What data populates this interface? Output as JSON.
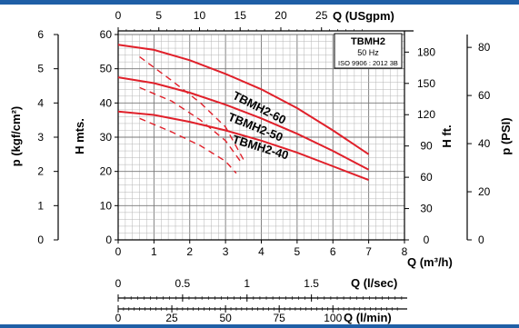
{
  "colors": {
    "top_bar": "#1f5fa6",
    "curve": "#e0202a",
    "grid_minor": "#b5b5b5",
    "grid_major": "#777777",
    "axis": "#000000"
  },
  "chart_data": {
    "type": "line",
    "xlabel": "Q (m³/h)",
    "ylabel": "H mts.",
    "xlim": [
      0,
      8
    ],
    "ylim": [
      0,
      60
    ],
    "x_ticks": [
      0,
      1,
      2,
      3,
      4,
      5,
      6,
      7,
      8
    ],
    "y_ticks": [
      0,
      10,
      20,
      30,
      40,
      50,
      60
    ],
    "grid": true,
    "legend": {
      "title": "TBMH2",
      "freq": "50 Hz",
      "iso": "ISO 9906 : 2012 3B",
      "placement": "top-right"
    },
    "series": [
      {
        "name": "TBMH2-60",
        "label": "TBMH2-60",
        "x": [
          0,
          1,
          2,
          3,
          4,
          5,
          6,
          7
        ],
        "y": [
          57,
          55.5,
          52.5,
          48.5,
          44,
          38.5,
          32,
          25
        ]
      },
      {
        "name": "TBMH2-50",
        "label": "TBMH2-50",
        "x": [
          0,
          1,
          2,
          3,
          4,
          5,
          6,
          7
        ],
        "y": [
          47.5,
          45.8,
          43,
          39.5,
          35.5,
          31,
          26,
          20.5
        ]
      },
      {
        "name": "TBMH2-40",
        "label": "TBMH2-40",
        "x": [
          0,
          1,
          2,
          3,
          4,
          5,
          6,
          7
        ],
        "y": [
          37.5,
          36.5,
          34.5,
          32,
          29,
          25.5,
          21.5,
          17.5
        ]
      }
    ],
    "dashed_lines": [
      {
        "x": [
          0.6,
          1.5,
          2.3,
          3.0,
          3.5
        ],
        "y": [
          53.5,
          46.5,
          40,
          33,
          23.5
        ]
      },
      {
        "x": [
          0.6,
          1.5,
          2.3,
          3.0,
          3.45
        ],
        "y": [
          44.5,
          40.5,
          35,
          29,
          22.5
        ]
      },
      {
        "x": [
          0.6,
          1.5,
          2.3,
          3.0,
          3.3
        ],
        "y": [
          35.5,
          31.5,
          27.5,
          23,
          19.5
        ]
      }
    ],
    "secondary_axes": {
      "top_usgpm": {
        "label": "Q (USgpm)",
        "max": 35.2,
        "ticks": [
          0,
          5,
          10,
          15,
          20,
          25
        ]
      },
      "left_kgf": {
        "label": "p (kgf/cm²)",
        "max": 6,
        "ticks": [
          0,
          1,
          2,
          3,
          4,
          5,
          6
        ]
      },
      "right_hft": {
        "label": "H ft.",
        "max": 196.85,
        "ticks": [
          0,
          30,
          60,
          90,
          120,
          150,
          180
        ]
      },
      "right_psi": {
        "label": "p (PSI)",
        "max": 85.34,
        "ticks": [
          0,
          20,
          40,
          60,
          80
        ]
      },
      "bottom_lsec": {
        "label": "Q (l/sec)",
        "max": 2.222,
        "ticks": [
          "0",
          "0.5",
          "1",
          "1.5"
        ]
      },
      "bottom_lmin": {
        "label": "Q (l/min)",
        "max": 133.33,
        "ticks": [
          0,
          25,
          50,
          75,
          100
        ]
      }
    }
  }
}
